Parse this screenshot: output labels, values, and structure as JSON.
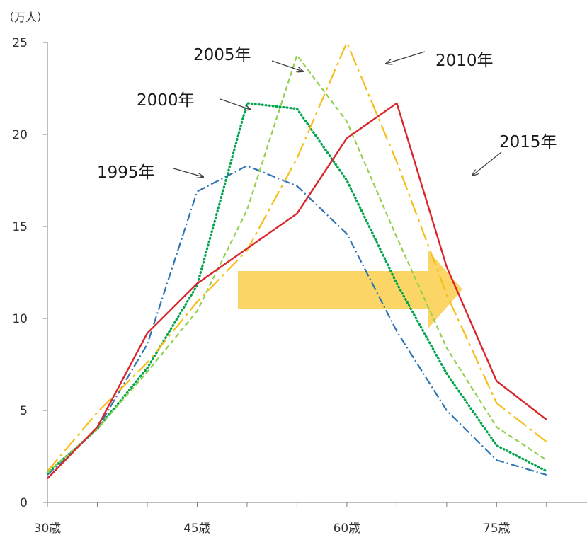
{
  "chart_data": {
    "type": "line",
    "title": "",
    "xlabel": "",
    "ylabel": "",
    "y_unit": "（万人）",
    "ylim": [
      0,
      25
    ],
    "y_ticks": [
      "0",
      "5",
      "10",
      "15",
      "20",
      "25"
    ],
    "x_tick_labels": [
      "30歳",
      "45歳",
      "60歳",
      "75歳"
    ],
    "x": [
      30,
      35,
      40,
      45,
      50,
      55,
      60,
      65,
      70,
      75,
      80
    ],
    "grid": false,
    "legend": "none",
    "series": [
      {
        "name": "1995年",
        "color": "#2e75b6",
        "dash": "dashdot",
        "values": [
          1.5,
          4.0,
          8.6,
          16.9,
          18.3,
          17.2,
          14.6,
          9.3,
          5.0,
          2.3,
          1.5
        ]
      },
      {
        "name": "2000年",
        "color": "#00a44a",
        "dash": "dotted",
        "values": [
          1.6,
          4.0,
          7.3,
          11.8,
          21.7,
          21.4,
          17.5,
          11.9,
          7.0,
          3.1,
          1.7
        ]
      },
      {
        "name": "2005年",
        "color": "#92d050",
        "dash": "dashed",
        "values": [
          1.6,
          4.0,
          7.1,
          10.4,
          15.9,
          24.3,
          20.7,
          14.4,
          8.4,
          4.1,
          2.3
        ]
      },
      {
        "name": "2010年",
        "color": "#f6bd16",
        "dash": "longdashdot",
        "values": [
          1.7,
          4.9,
          7.6,
          10.9,
          13.7,
          18.7,
          25.0,
          18.5,
          11.3,
          5.4,
          3.3
        ]
      },
      {
        "name": "2015年",
        "color": "#d9262b",
        "dash": "solid",
        "values": [
          1.3,
          4.1,
          9.2,
          11.9,
          13.8,
          15.7,
          19.8,
          21.7,
          12.8,
          6.6,
          4.5
        ]
      }
    ],
    "annotations": [
      "1995年",
      "2000年",
      "2005年",
      "2010年",
      "2015年"
    ]
  },
  "colors": {
    "axis": "#7f7f7f",
    "big_arrow": "#fbd35a",
    "pointer_arrow": "#404040"
  }
}
